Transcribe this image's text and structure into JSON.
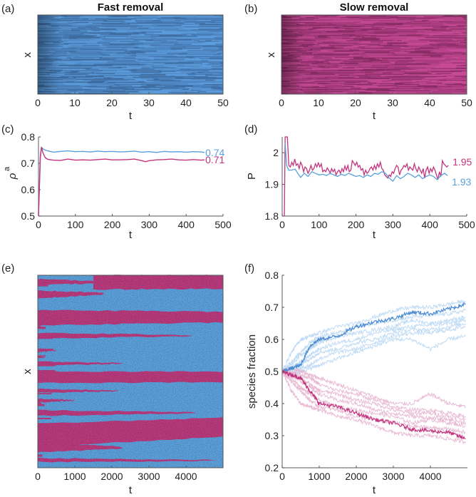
{
  "colors": {
    "blue": "#5a9fdc",
    "blue_dark": "#4a8bd2",
    "blue_light": "#b9d7f3",
    "magenta": "#c3347e",
    "magenta_light": "#e6b3cf",
    "kymo_blue": "#5b9fd9",
    "kymo_magenta": "#b83a7c",
    "axis": "#777777"
  },
  "chart_data": [
    {
      "id": "a",
      "panel_label": "(a)",
      "type": "heatmap",
      "title": "Fast removal",
      "xlabel": "t",
      "ylabel": "x",
      "xlim": [
        0,
        50
      ],
      "xticks": [
        0,
        10,
        20,
        30,
        40,
        50
      ],
      "colormap": "blue",
      "description": "Kymograph of x vs t, horizontal streaks, darker at early times"
    },
    {
      "id": "b",
      "panel_label": "(b)",
      "type": "heatmap",
      "title": "Slow removal",
      "xlabel": "t",
      "ylabel": "x",
      "xlim": [
        0,
        50
      ],
      "xticks": [
        0,
        10,
        20,
        30,
        40,
        50
      ],
      "colormap": "magenta",
      "description": "Kymograph of x vs t, horizontal streaks, darker at early times"
    },
    {
      "id": "c",
      "panel_label": "(c)",
      "type": "line",
      "title": "",
      "xlabel": "t",
      "ylabel": "ρ",
      "ylabel_sup": "a",
      "xlim": [
        0,
        500
      ],
      "ylim": [
        0.5,
        0.8
      ],
      "xticks": [
        0,
        100,
        200,
        300,
        400,
        500
      ],
      "yticks": [
        0.5,
        0.6,
        0.7,
        0.8
      ],
      "series": [
        {
          "name": "fast",
          "color_key": "blue",
          "end_label": "0.74",
          "x": [
            0,
            5,
            8,
            15,
            25,
            40,
            60,
            80,
            100,
            120,
            140,
            160,
            180,
            200,
            220,
            240,
            260,
            280,
            300,
            320,
            340,
            360,
            380,
            400,
            420,
            440,
            450
          ],
          "y": [
            0.5,
            0.73,
            0.76,
            0.752,
            0.747,
            0.742,
            0.745,
            0.747,
            0.744,
            0.745,
            0.743,
            0.746,
            0.744,
            0.745,
            0.743,
            0.744,
            0.746,
            0.742,
            0.744,
            0.741,
            0.745,
            0.743,
            0.744,
            0.742,
            0.744,
            0.743,
            0.741
          ]
        },
        {
          "name": "slow",
          "color_key": "magenta",
          "end_label": "0.71",
          "x": [
            0,
            5,
            8,
            12,
            18,
            25,
            40,
            60,
            80,
            100,
            120,
            140,
            160,
            180,
            200,
            220,
            240,
            260,
            280,
            290,
            300,
            320,
            340,
            360,
            380,
            400,
            420,
            440,
            450
          ],
          "y": [
            0.5,
            0.72,
            0.762,
            0.74,
            0.722,
            0.715,
            0.712,
            0.711,
            0.716,
            0.712,
            0.713,
            0.712,
            0.714,
            0.716,
            0.713,
            0.713,
            0.714,
            0.716,
            0.71,
            0.706,
            0.71,
            0.713,
            0.714,
            0.716,
            0.713,
            0.712,
            0.714,
            0.712,
            0.713
          ]
        }
      ]
    },
    {
      "id": "d",
      "panel_label": "(d)",
      "type": "line",
      "title": "",
      "xlabel": "t",
      "ylabel": "P",
      "xlim": [
        0,
        500
      ],
      "ylim": [
        1.8,
        2.05
      ],
      "xticks": [
        0,
        100,
        200,
        300,
        400,
        500
      ],
      "yticks": [
        1.8,
        1.9,
        2.0
      ],
      "ytick_labels": [
        "1.8",
        "1.9",
        "2"
      ],
      "series": [
        {
          "name": "fast",
          "color_key": "blue",
          "end_label": "1.93",
          "x": [
            8,
            12,
            18,
            25,
            35,
            45,
            50,
            60,
            70,
            80,
            90,
            100,
            110,
            120,
            130,
            140,
            150,
            160,
            170,
            180,
            190,
            200,
            210,
            220,
            230,
            240,
            250,
            260,
            270,
            280,
            290,
            300,
            310,
            320,
            330,
            340,
            350,
            360,
            370,
            380,
            390,
            400,
            410,
            420,
            430,
            440,
            448
          ],
          "y": [
            2.03,
            1.96,
            1.945,
            1.945,
            1.948,
            1.93,
            1.922,
            1.935,
            1.925,
            1.94,
            1.935,
            1.93,
            1.932,
            1.928,
            1.935,
            1.93,
            1.925,
            1.932,
            1.928,
            1.935,
            1.93,
            1.925,
            1.928,
            1.922,
            1.93,
            1.925,
            1.935,
            1.932,
            1.94,
            1.935,
            1.92,
            1.91,
            1.928,
            1.918,
            1.925,
            1.935,
            1.93,
            1.922,
            1.93,
            1.918,
            1.925,
            1.93,
            1.925,
            1.915,
            1.928,
            1.935,
            1.928
          ]
        },
        {
          "name": "slow",
          "color_key": "magenta",
          "end_label": "1.95",
          "x": [
            6,
            8,
            10,
            14,
            18,
            22,
            26,
            30,
            34,
            38,
            42,
            46,
            50,
            54,
            58,
            62,
            66,
            70,
            74,
            78,
            82,
            86,
            90,
            94,
            98,
            102,
            106,
            110,
            114,
            118,
            122,
            126,
            130,
            134,
            138,
            142,
            146,
            150,
            154,
            158,
            162,
            166,
            170,
            174,
            178,
            182,
            186,
            190,
            194,
            198,
            202,
            206,
            210,
            214,
            218,
            222,
            226,
            230,
            234,
            238,
            242,
            246,
            250,
            254,
            258,
            262,
            266,
            270,
            274,
            278,
            282,
            286,
            290,
            294,
            298,
            302,
            306,
            310,
            314,
            318,
            322,
            326,
            330,
            334,
            338,
            342,
            346,
            350,
            354,
            358,
            362,
            366,
            370,
            374,
            378,
            382,
            386,
            390,
            394,
            398,
            402,
            406,
            410,
            414,
            418,
            422,
            426,
            430,
            434,
            438,
            442,
            446,
            450
          ],
          "y": [
            1.8,
            2.05,
            2.05,
            2.05,
            1.96,
            1.955,
            1.97,
            1.96,
            1.98,
            1.96,
            1.965,
            1.95,
            1.97,
            1.96,
            1.94,
            1.955,
            1.95,
            1.935,
            1.945,
            1.96,
            1.945,
            1.95,
            1.965,
            1.955,
            1.968,
            1.955,
            1.965,
            1.94,
            1.945,
            1.94,
            1.952,
            1.945,
            1.935,
            1.95,
            1.94,
            1.948,
            1.93,
            1.94,
            1.945,
            1.935,
            1.95,
            1.94,
            1.958,
            1.945,
            1.96,
            1.94,
            1.945,
            1.975,
            1.968,
            1.96,
            1.97,
            1.955,
            1.96,
            1.945,
            1.95,
            1.93,
            1.945,
            1.935,
            1.94,
            1.95,
            1.955,
            1.945,
            1.96,
            1.948,
            1.965,
            1.955,
            1.97,
            1.95,
            1.945,
            1.93,
            1.925,
            1.92,
            1.93,
            1.925,
            1.94,
            1.935,
            1.95,
            1.96,
            1.955,
            1.93,
            1.945,
            1.95,
            1.96,
            1.955,
            1.965,
            1.945,
            1.955,
            1.95,
            1.945,
            1.965,
            1.95,
            1.94,
            1.955,
            1.945,
            1.935,
            1.95,
            1.92,
            1.945,
            1.955,
            1.935,
            1.95,
            1.94,
            1.955,
            1.945,
            1.93,
            1.915,
            1.94,
            1.925,
            1.975,
            1.965,
            1.96,
            1.955,
            1.96
          ]
        }
      ]
    },
    {
      "id": "e",
      "panel_label": "(e)",
      "type": "heatmap",
      "title": "",
      "xlabel": "t",
      "ylabel": "x",
      "xlim": [
        0,
        5000
      ],
      "xticks": [
        0,
        1000,
        2000,
        3000,
        4000
      ],
      "description": "Kymograph of two species (blue, magenta) coarsening into domains over time",
      "magenta_domains": [
        {
          "y0": 0.0,
          "y1": 0.075,
          "t_start": 1500,
          "t_end": 5000,
          "y_end0": 0.0,
          "y_end1": 0.07
        },
        {
          "y0": 0.02,
          "y1": 0.05,
          "t_start": 0,
          "t_end": 2200,
          "y_end0": 0.035,
          "y_end1": 0.04
        },
        {
          "y0": 0.08,
          "y1": 0.12,
          "t_start": 0,
          "t_end": 1800,
          "y_end0": 0.09,
          "y_end1": 0.1
        },
        {
          "y0": 0.18,
          "y1": 0.26,
          "t_start": 0,
          "t_end": 5000,
          "y_end0": 0.19,
          "y_end1": 0.245
        },
        {
          "y0": 0.3,
          "y1": 0.33,
          "t_start": 0,
          "t_end": 4200,
          "y_end0": 0.31,
          "y_end1": 0.315
        },
        {
          "y0": 0.38,
          "y1": 0.4,
          "t_start": 0,
          "t_end": 500,
          "y_end0": 0.388,
          "y_end1": 0.392
        },
        {
          "y0": 0.45,
          "y1": 0.47,
          "t_start": 0,
          "t_end": 2300,
          "y_end0": 0.455,
          "y_end1": 0.46
        },
        {
          "y0": 0.5,
          "y1": 0.56,
          "t_start": 0,
          "t_end": 5000,
          "y_end0": 0.5,
          "y_end1": 0.555
        },
        {
          "y0": 0.59,
          "y1": 0.61,
          "t_start": 0,
          "t_end": 2200,
          "y_end0": 0.598,
          "y_end1": 0.602
        },
        {
          "y0": 0.64,
          "y1": 0.66,
          "t_start": 0,
          "t_end": 1000,
          "y_end0": 0.648,
          "y_end1": 0.652
        },
        {
          "y0": 0.7,
          "y1": 0.73,
          "t_start": 0,
          "t_end": 4300,
          "y_end0": 0.712,
          "y_end1": 0.718
        },
        {
          "y0": 0.77,
          "y1": 0.89,
          "t_start": 0,
          "t_end": 5000,
          "y_end0": 0.74,
          "y_end1": 0.84
        },
        {
          "y0": 0.83,
          "y1": 0.85,
          "t_start": 0,
          "t_end": 2500,
          "y_end0": 0.838,
          "y_end1": 0.842
        },
        {
          "y0": 0.87,
          "y1": 0.92,
          "t_start": 0,
          "t_end": 2300,
          "y_end0": 0.89,
          "y_end1": 0.9
        },
        {
          "y0": 0.95,
          "y1": 0.97,
          "t_start": 0,
          "t_end": 4800,
          "y_end0": 0.96,
          "y_end1": 0.965
        }
      ]
    },
    {
      "id": "f",
      "panel_label": "(f)",
      "type": "line",
      "title": "",
      "xlabel": "t",
      "ylabel": "species fraction",
      "xlim": [
        0,
        5000
      ],
      "ylim": [
        0.2,
        0.8
      ],
      "xticks": [
        0,
        1000,
        2000,
        3000,
        4000
      ],
      "yticks": [
        0.2,
        0.3,
        0.4,
        0.5,
        0.6,
        0.7,
        0.8
      ],
      "x": [
        0,
        250,
        500,
        750,
        1000,
        1500,
        2000,
        2500,
        3000,
        3500,
        4000,
        4500,
        4950
      ],
      "series": [
        {
          "name": "blue-highlight",
          "color_key": "blue_dark",
          "y": [
            0.5,
            0.51,
            0.52,
            0.58,
            0.6,
            0.61,
            0.64,
            0.655,
            0.665,
            0.685,
            0.68,
            0.695,
            0.71
          ]
        },
        {
          "name": "blue-1",
          "color_key": "blue_light",
          "y": [
            0.5,
            0.56,
            0.6,
            0.61,
            0.62,
            0.64,
            0.65,
            0.67,
            0.69,
            0.7,
            0.7,
            0.71,
            0.72
          ]
        },
        {
          "name": "blue-2",
          "color_key": "blue_light",
          "y": [
            0.5,
            0.53,
            0.56,
            0.59,
            0.61,
            0.62,
            0.64,
            0.65,
            0.66,
            0.67,
            0.675,
            0.68,
            0.69
          ]
        },
        {
          "name": "blue-3",
          "color_key": "blue_light",
          "y": [
            0.5,
            0.52,
            0.55,
            0.57,
            0.59,
            0.61,
            0.62,
            0.63,
            0.64,
            0.66,
            0.65,
            0.66,
            0.67
          ]
        },
        {
          "name": "blue-4",
          "color_key": "blue_light",
          "y": [
            0.5,
            0.51,
            0.53,
            0.55,
            0.57,
            0.59,
            0.6,
            0.62,
            0.63,
            0.64,
            0.645,
            0.65,
            0.66
          ]
        },
        {
          "name": "blue-5",
          "color_key": "blue_light",
          "y": [
            0.5,
            0.51,
            0.52,
            0.54,
            0.56,
            0.57,
            0.59,
            0.6,
            0.62,
            0.63,
            0.63,
            0.64,
            0.65
          ]
        },
        {
          "name": "blue-6",
          "color_key": "blue_light",
          "y": [
            0.5,
            0.5,
            0.51,
            0.52,
            0.54,
            0.56,
            0.57,
            0.59,
            0.61,
            0.62,
            0.62,
            0.63,
            0.64
          ]
        },
        {
          "name": "blue-7",
          "color_key": "blue_light",
          "y": [
            0.5,
            0.49,
            0.5,
            0.51,
            0.52,
            0.54,
            0.56,
            0.58,
            0.6,
            0.6,
            0.57,
            0.6,
            0.61
          ]
        },
        {
          "name": "magenta-highlight",
          "color_key": "magenta",
          "y": [
            0.5,
            0.49,
            0.48,
            0.44,
            0.4,
            0.39,
            0.37,
            0.35,
            0.34,
            0.32,
            0.315,
            0.31,
            0.29
          ]
        },
        {
          "name": "magenta-1",
          "color_key": "magenta_light",
          "y": [
            0.5,
            0.44,
            0.4,
            0.39,
            0.38,
            0.36,
            0.35,
            0.33,
            0.31,
            0.3,
            0.3,
            0.29,
            0.28
          ]
        },
        {
          "name": "magenta-2",
          "color_key": "magenta_light",
          "y": [
            0.5,
            0.47,
            0.44,
            0.41,
            0.39,
            0.38,
            0.36,
            0.35,
            0.34,
            0.33,
            0.325,
            0.32,
            0.31
          ]
        },
        {
          "name": "magenta-3",
          "color_key": "magenta_light",
          "y": [
            0.5,
            0.48,
            0.45,
            0.43,
            0.41,
            0.39,
            0.38,
            0.37,
            0.36,
            0.34,
            0.35,
            0.34,
            0.33
          ]
        },
        {
          "name": "magenta-4",
          "color_key": "magenta_light",
          "y": [
            0.5,
            0.49,
            0.47,
            0.45,
            0.43,
            0.41,
            0.4,
            0.38,
            0.37,
            0.36,
            0.355,
            0.35,
            0.34
          ]
        },
        {
          "name": "magenta-5",
          "color_key": "magenta_light",
          "y": [
            0.5,
            0.49,
            0.48,
            0.46,
            0.44,
            0.43,
            0.41,
            0.4,
            0.38,
            0.37,
            0.37,
            0.36,
            0.35
          ]
        },
        {
          "name": "magenta-6",
          "color_key": "magenta_light",
          "y": [
            0.5,
            0.5,
            0.49,
            0.48,
            0.46,
            0.44,
            0.43,
            0.41,
            0.39,
            0.38,
            0.38,
            0.37,
            0.36
          ]
        },
        {
          "name": "magenta-7",
          "color_key": "magenta_light",
          "y": [
            0.5,
            0.51,
            0.5,
            0.49,
            0.48,
            0.46,
            0.44,
            0.42,
            0.4,
            0.4,
            0.43,
            0.4,
            0.39
          ]
        }
      ]
    }
  ]
}
